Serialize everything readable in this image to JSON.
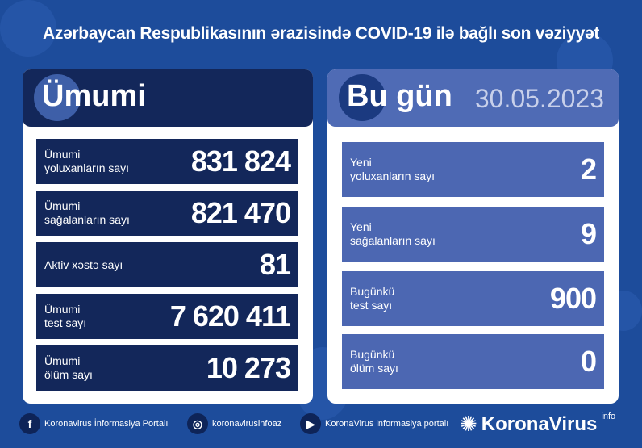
{
  "title": "Azərbaycan Respublikasının ərazisində COVID-19 ilə bağlı son vəziyyət",
  "colors": {
    "background": "#1d4c9b",
    "total_header": "#13275a",
    "today_header": "#4f6bb5",
    "today_row": "#4c67b2"
  },
  "total": {
    "header": "Ümumi",
    "rows": [
      {
        "label1": "Ümumi",
        "label2": "yoluxanların sayı",
        "value": "831 824"
      },
      {
        "label1": "Ümumi",
        "label2": "sağalanların sayı",
        "value": "821 470"
      },
      {
        "label1": "Aktiv xəstə sayı",
        "label2": "",
        "value": "81"
      },
      {
        "label1": "Ümumi",
        "label2": "test sayı",
        "value": "7 620 411"
      },
      {
        "label1": "Ümumi",
        "label2": "ölüm sayı",
        "value": "10 273"
      }
    ]
  },
  "today": {
    "header": "Bu gün",
    "date": "30.05.2023",
    "rows": [
      {
        "label1": "Yeni",
        "label2": "yoluxanların sayı",
        "value": "2"
      },
      {
        "label1": "Yeni",
        "label2": "sağalanların sayı",
        "value": "9"
      },
      {
        "label1": "Bugünkü",
        "label2": "test sayı",
        "value": "900"
      },
      {
        "label1": "Bugünkü",
        "label2": "ölüm sayı",
        "value": "0"
      }
    ]
  },
  "footer": {
    "facebook": "Koronavirus İnformasiya Portalı",
    "instagram": "koronavirusinfoaz",
    "youtube": "KoronaVirus informasiya portalı",
    "logo": "KoronaVirus",
    "logo_sup": "info",
    "icons": [
      "facebook-icon",
      "instagram-icon",
      "youtube-icon",
      "virus-logo-icon"
    ]
  }
}
